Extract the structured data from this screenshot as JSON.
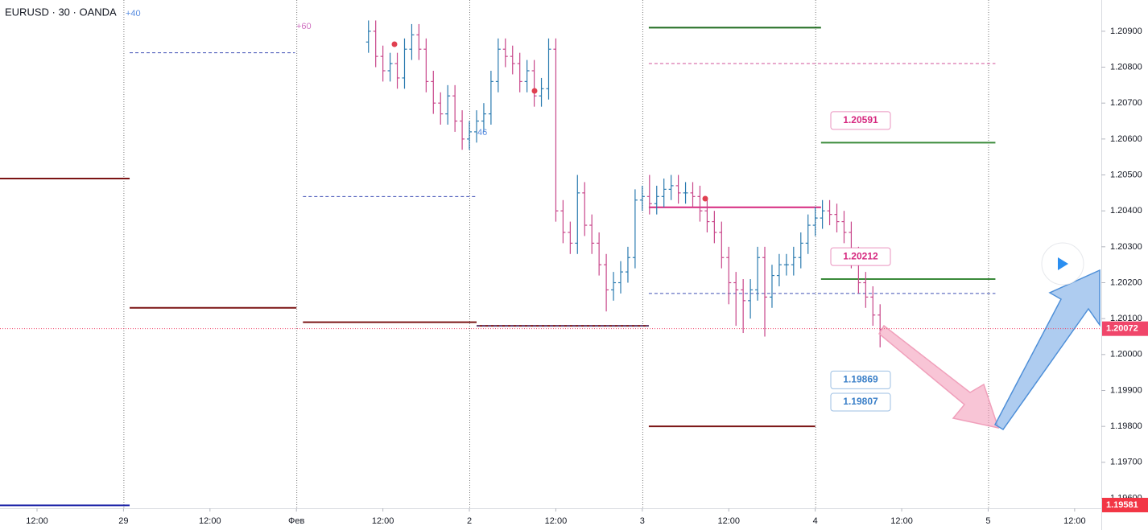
{
  "chart_data": {
    "type": "ohlc",
    "title": "EURUSD · 30 · OANDA",
    "x": [
      46,
      47,
      48,
      49,
      50,
      51,
      52,
      53,
      54,
      55,
      56,
      57,
      58,
      59,
      60,
      61,
      62,
      63,
      64,
      65,
      66,
      67,
      68,
      69,
      70,
      71,
      72,
      73,
      74,
      75,
      76,
      77,
      78,
      79,
      80,
      81,
      82,
      83,
      84,
      85,
      86,
      87,
      88,
      89,
      90,
      91,
      92,
      93,
      94,
      95,
      96,
      97,
      98,
      99,
      100,
      101,
      102,
      103,
      104,
      105,
      106,
      107,
      108,
      109,
      110,
      111,
      112,
      113,
      114,
      115,
      116,
      117
    ],
    "open": [
      1.2087,
      1.209,
      1.2083,
      1.2079,
      1.2081,
      1.2077,
      1.2085,
      1.2089,
      1.2085,
      1.2076,
      1.207,
      1.2067,
      1.2072,
      1.2065,
      1.206,
      1.2062,
      1.2065,
      1.2067,
      1.2076,
      1.2085,
      1.2083,
      1.2081,
      1.2076,
      1.2079,
      1.2072,
      1.2074,
      1.2085,
      1.204,
      1.2034,
      1.2031,
      1.2045,
      1.2036,
      1.2031,
      1.2025,
      1.2018,
      1.202,
      1.2023,
      1.2027,
      1.2043,
      1.2044,
      1.2042,
      1.2044,
      1.2046,
      1.2047,
      1.2045,
      1.2045,
      1.2044,
      1.204,
      1.2037,
      1.2034,
      1.2027,
      1.202,
      1.2018,
      1.2015,
      1.2018,
      1.2027,
      1.2016,
      1.2022,
      1.2025,
      1.2025,
      1.2027,
      1.2031,
      1.2036,
      1.2038,
      1.204,
      1.2039,
      1.2037,
      1.2034,
      1.2027,
      1.202,
      1.2016,
      1.2011
    ],
    "high": [
      1.2093,
      1.2093,
      1.2086,
      1.2084,
      1.2084,
      1.2088,
      1.2092,
      1.2092,
      1.2088,
      1.2079,
      1.2073,
      1.2075,
      1.2075,
      1.2068,
      1.2065,
      1.2068,
      1.207,
      1.2079,
      1.2088,
      1.2088,
      1.2086,
      1.2084,
      1.2082,
      1.2082,
      1.2077,
      1.2088,
      1.2088,
      1.2043,
      1.2037,
      1.205,
      1.2048,
      1.2039,
      1.2034,
      1.2028,
      1.2023,
      1.2026,
      1.203,
      1.2046,
      1.2047,
      1.205,
      1.2047,
      1.2049,
      1.205,
      1.205,
      1.2048,
      1.2048,
      1.2047,
      1.2043,
      1.204,
      1.2037,
      1.203,
      1.2023,
      1.2021,
      1.2021,
      1.203,
      1.203,
      1.2025,
      1.2028,
      1.2028,
      1.203,
      1.2034,
      1.2039,
      1.2041,
      1.2043,
      1.2043,
      1.2042,
      1.204,
      1.2037,
      1.203,
      1.2023,
      1.2019,
      1.2014
    ],
    "low": [
      1.2084,
      1.208,
      1.2076,
      1.2076,
      1.2074,
      1.2074,
      1.2082,
      1.2082,
      1.2073,
      1.2067,
      1.2064,
      1.2064,
      1.2062,
      1.2057,
      1.2057,
      1.2059,
      1.2062,
      1.2064,
      1.2073,
      1.208,
      1.2078,
      1.2073,
      1.2073,
      1.2069,
      1.2069,
      1.2071,
      1.2037,
      1.2031,
      1.2028,
      1.2028,
      1.2033,
      1.2028,
      1.2022,
      1.2012,
      1.2015,
      1.2017,
      1.202,
      1.2024,
      1.204,
      1.2039,
      1.2039,
      1.2041,
      1.2043,
      1.2042,
      1.2042,
      1.2041,
      1.2037,
      1.2034,
      1.2031,
      1.2024,
      1.2014,
      1.2008,
      1.2006,
      1.201,
      1.2015,
      1.2005,
      1.2013,
      1.2019,
      1.2022,
      1.2022,
      1.2024,
      1.2028,
      1.2033,
      1.2035,
      1.2036,
      1.2034,
      1.2031,
      1.2024,
      1.2017,
      1.2013,
      1.2008,
      1.2002
    ],
    "close": [
      1.209,
      1.2083,
      1.2079,
      1.2081,
      1.2077,
      1.2085,
      1.2089,
      1.2085,
      1.2076,
      1.207,
      1.2067,
      1.2072,
      1.2065,
      1.206,
      1.2062,
      1.2065,
      1.2067,
      1.2076,
      1.2085,
      1.2083,
      1.2081,
      1.2076,
      1.2079,
      1.2072,
      1.2074,
      1.2085,
      1.204,
      1.2034,
      1.2031,
      1.2045,
      1.2036,
      1.2031,
      1.2025,
      1.2018,
      1.202,
      1.2023,
      1.2027,
      1.2043,
      1.2044,
      1.2042,
      1.2044,
      1.2046,
      1.2047,
      1.2045,
      1.2045,
      1.2044,
      1.204,
      1.2037,
      1.2034,
      1.2027,
      1.202,
      1.2018,
      1.2015,
      1.2018,
      1.2027,
      1.2016,
      1.2022,
      1.2025,
      1.2025,
      1.2027,
      1.2031,
      1.2036,
      1.2038,
      1.204,
      1.2039,
      1.2037,
      1.2034,
      1.2027,
      1.202,
      1.2016,
      1.2011,
      1.2007
    ],
    "up_color": "#2b7bb0",
    "down_color": "#c8468a",
    "xlim": [
      -5.14,
      147.7
    ],
    "ylim": [
      1.19572,
      1.20987
    ],
    "xticks": [
      {
        "value": 0,
        "label": "12:00"
      },
      {
        "value": 12,
        "label": "29"
      },
      {
        "value": 24,
        "label": "12:00"
      },
      {
        "value": 36,
        "label": "Фев"
      },
      {
        "value": 48,
        "label": "12:00"
      },
      {
        "value": 60,
        "label": "2"
      },
      {
        "value": 72,
        "label": "12:00"
      },
      {
        "value": 84,
        "label": "3"
      },
      {
        "value": 96,
        "label": "12:00"
      },
      {
        "value": 108,
        "label": "4"
      },
      {
        "value": 120,
        "label": "12:00"
      },
      {
        "value": 132,
        "label": "5"
      },
      {
        "value": 144,
        "label": "12:00"
      }
    ],
    "yticks": [
      {
        "value": 1.196,
        "label": "1.19600"
      },
      {
        "value": 1.197,
        "label": "1.19700"
      },
      {
        "value": 1.198,
        "label": "1.19800"
      },
      {
        "value": 1.199,
        "label": "1.19900"
      },
      {
        "value": 1.2,
        "label": "1.20000"
      },
      {
        "value": 1.201,
        "label": "1.20100"
      },
      {
        "value": 1.202,
        "label": "1.20200"
      },
      {
        "value": 1.203,
        "label": "1.20300"
      },
      {
        "value": 1.204,
        "label": "1.20400"
      },
      {
        "value": 1.205,
        "label": "1.20500"
      },
      {
        "value": 1.206,
        "label": "1.20600"
      },
      {
        "value": 1.207,
        "label": "1.20700"
      },
      {
        "value": 1.208,
        "label": "1.20800"
      },
      {
        "value": 1.209,
        "label": "1.20900"
      }
    ],
    "day_grid": true,
    "levels": [
      {
        "x": [
          -5.14,
          12.85
        ],
        "value": 1.2049,
        "color": "#7b1414",
        "style": "solid"
      },
      {
        "x": [
          12.85,
          36
        ],
        "value": 1.2013,
        "color": "#7b1414",
        "style": "solid"
      },
      {
        "x": [
          36.9,
          61
        ],
        "value": 1.2009,
        "color": "#7b1414",
        "style": "solid"
      },
      {
        "x": [
          61,
          84.9
        ],
        "value": 1.2008,
        "color": "#7b1414",
        "style": "solid"
      },
      {
        "x": [
          84.9,
          108
        ],
        "value": 1.198,
        "color": "#7b1414",
        "style": "solid"
      },
      {
        "x": [
          -5.14,
          12.85
        ],
        "value": 1.1958,
        "color": "#1c23a8",
        "style": "solid"
      },
      {
        "x": [
          12.85,
          35.8
        ],
        "value": 1.2084,
        "color": "#3f4fb5",
        "style": "dashed"
      },
      {
        "x": [
          36.9,
          61
        ],
        "value": 1.2044,
        "color": "#3f4fb5",
        "style": "dashed"
      },
      {
        "x": [
          61,
          84.9
        ],
        "value": 1.2008,
        "color": "#3f4fb5",
        "style": "dashed"
      },
      {
        "x": [
          84.9,
          133
        ],
        "value": 1.2017,
        "color": "#3f4fb5",
        "style": "dashed"
      },
      {
        "x": [
          84.9,
          133
        ],
        "value": 1.2081,
        "color": "#d0509a",
        "style": "dashed"
      },
      {
        "x": [
          84.9,
          108.8
        ],
        "value": 1.2041,
        "color": "#d6287f",
        "style": "solid"
      },
      {
        "x": [
          84.9,
          108.8
        ],
        "value": 1.2091,
        "color": "#1e6b1e",
        "style": "solid"
      },
      {
        "x": [
          108.8,
          133
        ],
        "value": 1.2059,
        "color": "#3a8a3a",
        "style": "solid"
      },
      {
        "x": [
          108.8,
          133
        ],
        "value": 1.2021,
        "color": "#3a8a3a",
        "style": "solid"
      }
    ],
    "callouts": [
      {
        "value": 1.20591,
        "color": "#d6287f"
      },
      {
        "value": 1.20212,
        "color": "#d6287f"
      },
      {
        "value": 1.19869,
        "color": "#3a7fc8"
      },
      {
        "value": 1.19807,
        "color": "#3a7fc8"
      }
    ],
    "price_tags": [
      {
        "value": 1.20072,
        "color": "#f0466a"
      },
      {
        "value": 1.19581,
        "color": "#f23645"
      }
    ],
    "annotations": [
      "+40",
      "+60",
      "46"
    ]
  }
}
